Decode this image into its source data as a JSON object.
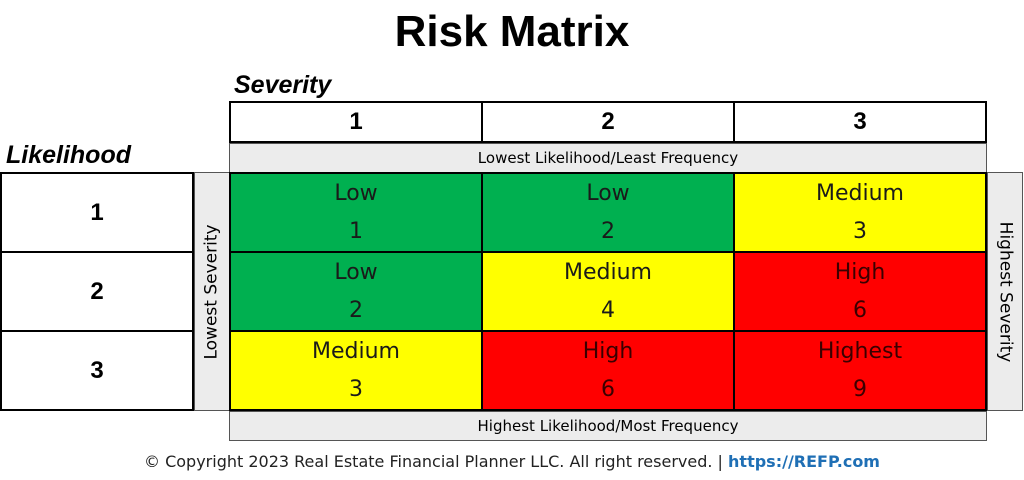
{
  "title": "Risk Matrix",
  "severity_label": "Severity",
  "likelihood_label": "Likelihood",
  "severity_headers": [
    "1",
    "2",
    "3"
  ],
  "likelihood_headers": [
    "1",
    "2",
    "3"
  ],
  "top_band": "Lowest Likelihood/Least Frequency",
  "bottom_band": "Highest Likelihood/Most Frequency",
  "left_band": "Lowest Severity",
  "right_band": "Highest Severity",
  "colors": {
    "low": "#00b050",
    "medium": "#ffff00",
    "high": "#ff0000"
  },
  "matrix": [
    [
      {
        "level": "Low",
        "score": "1",
        "color": "green"
      },
      {
        "level": "Low",
        "score": "2",
        "color": "green"
      },
      {
        "level": "Medium",
        "score": "3",
        "color": "yellow"
      }
    ],
    [
      {
        "level": "Low",
        "score": "2",
        "color": "green"
      },
      {
        "level": "Medium",
        "score": "4",
        "color": "yellow"
      },
      {
        "level": "High",
        "score": "6",
        "color": "red"
      }
    ],
    [
      {
        "level": "Medium",
        "score": "3",
        "color": "yellow"
      },
      {
        "level": "High",
        "score": "6",
        "color": "red"
      },
      {
        "level": "Highest",
        "score": "9",
        "color": "red"
      }
    ]
  ],
  "footer": {
    "copyright": "© Copyright 2023 Real Estate Financial Planner LLC. All right reserved. |",
    "link": "https://REFP.com"
  }
}
